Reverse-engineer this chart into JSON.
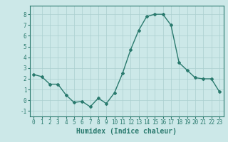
{
  "x": [
    0,
    1,
    2,
    3,
    4,
    5,
    6,
    7,
    8,
    9,
    10,
    11,
    12,
    13,
    14,
    15,
    16,
    17,
    18,
    19,
    20,
    21,
    22,
    23
  ],
  "y": [
    2.4,
    2.2,
    1.5,
    1.5,
    0.5,
    -0.2,
    -0.1,
    -0.6,
    0.2,
    -0.3,
    0.7,
    2.5,
    4.7,
    6.5,
    7.8,
    8.0,
    8.0,
    7.0,
    3.5,
    2.8,
    2.1,
    2.0,
    2.0,
    0.8
  ],
  "line_color": "#2a7a6e",
  "marker": "D",
  "marker_size": 2.0,
  "bg_color": "#cce8e8",
  "grid_color": "#aacfcf",
  "xlabel": "Humidex (Indice chaleur)",
  "xlim": [
    -0.5,
    23.5
  ],
  "ylim": [
    -1.5,
    8.8
  ],
  "yticks": [
    -1,
    0,
    1,
    2,
    3,
    4,
    5,
    6,
    7,
    8
  ],
  "xticks": [
    0,
    1,
    2,
    3,
    4,
    5,
    6,
    7,
    8,
    9,
    10,
    11,
    12,
    13,
    14,
    15,
    16,
    17,
    18,
    19,
    20,
    21,
    22,
    23
  ],
  "tick_label_fontsize": 5.5,
  "xlabel_fontsize": 7.0,
  "linewidth": 1.0
}
